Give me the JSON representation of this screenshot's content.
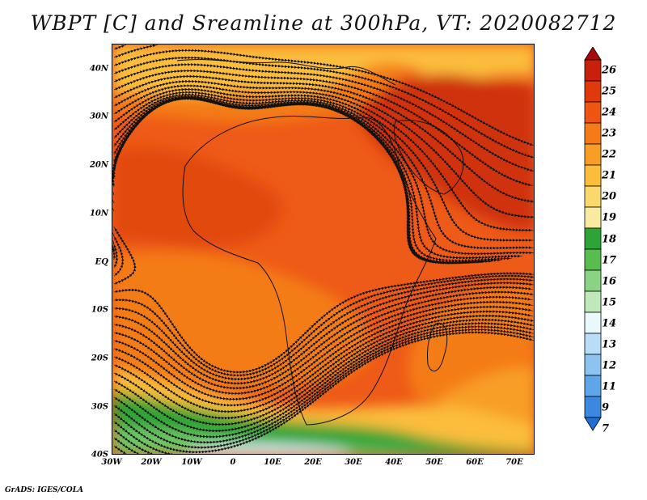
{
  "title": "WBPT [C] and Sreamline at 300hPa, VT: 2020082712",
  "credit": "GrADS: IGES/COLA",
  "lat_labels": [
    "40N",
    "30N",
    "20N",
    "10N",
    "EQ",
    "10S",
    "20S",
    "30S",
    "40S"
  ],
  "lon_labels": [
    "30W",
    "20W",
    "10W",
    "0",
    "10E",
    "20E",
    "30E",
    "40E",
    "50E",
    "60E",
    "70E"
  ],
  "colorbar": {
    "labels": [
      "26",
      "25",
      "24",
      "23",
      "22",
      "21",
      "20",
      "19",
      "18",
      "17",
      "16",
      "15",
      "14",
      "13",
      "12",
      "11",
      "9",
      "7"
    ],
    "colors": [
      "#a50a0a",
      "#c8200a",
      "#e03a0c",
      "#ee5512",
      "#f47b18",
      "#f89e26",
      "#fbbd3a",
      "#fbd86e",
      "#f8ea9e",
      "#2ea336",
      "#58bd4e",
      "#8ad284",
      "#bfe8bb",
      "#e9f9fb",
      "#b9dcf7",
      "#8cc3f1",
      "#5ea5ea",
      "#3a88e0",
      "#1f6fdb"
    ]
  },
  "map_colors": {
    "bg": "#ee5a18",
    "orange": "#f47b18",
    "light_orange": "#f89e26",
    "yellow": "#fbbd3a",
    "pale_yellow": "#f8e29a",
    "dark_red": "#cf3010",
    "red": "#e24a10",
    "green": "#2ea336",
    "light_green": "#6ec465",
    "pale_green": "#b9e3b0",
    "pale_blue": "#d6ecf7",
    "coast": "#111111"
  }
}
